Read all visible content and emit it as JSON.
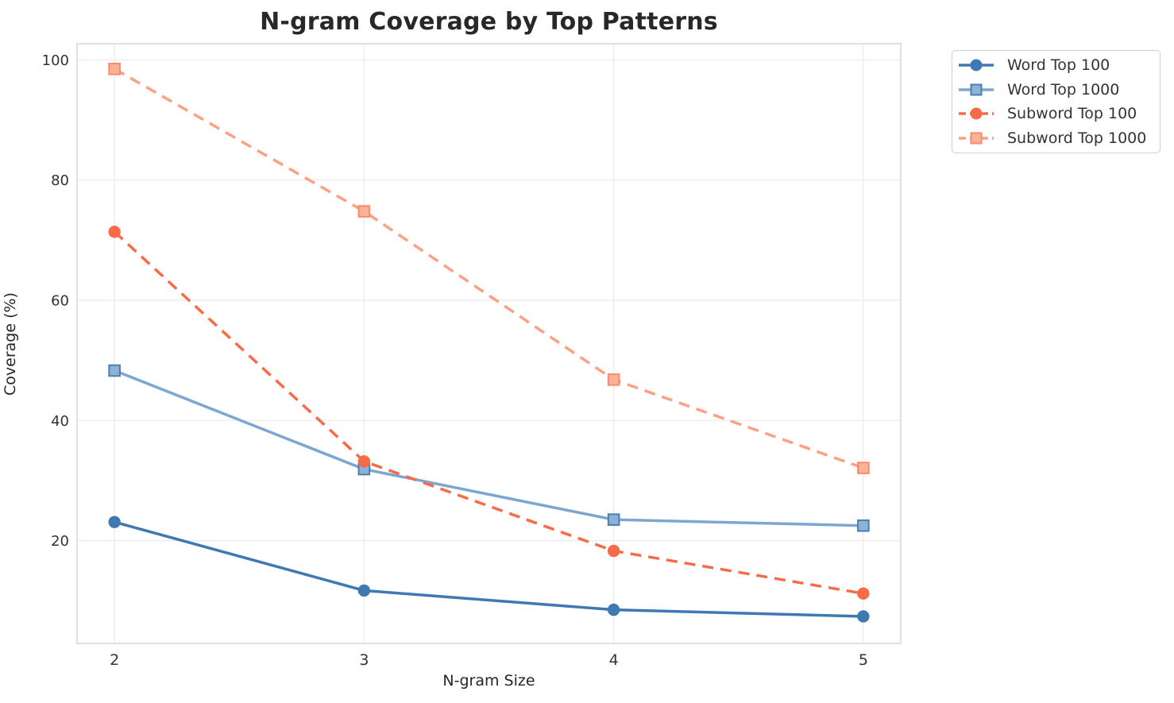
{
  "title": "N-gram Coverage by Top Patterns",
  "chart_data": {
    "type": "line",
    "title": "N-gram Coverage by Top Patterns",
    "xlabel": "N-gram Size",
    "ylabel": "Coverage (%)",
    "x": [
      2,
      3,
      4,
      5
    ],
    "xticks": [
      "2",
      "3",
      "4",
      "5"
    ],
    "yticks": [
      "20",
      "40",
      "60",
      "80",
      "100"
    ],
    "ytick_values": [
      20,
      40,
      60,
      80,
      100
    ],
    "xlim": [
      1.85,
      5.15
    ],
    "ylim": [
      2.9,
      102.7
    ],
    "grid": true,
    "legend_position": "outside-upper-right",
    "series": [
      {
        "name": "Word Top 100",
        "values": [
          23.1,
          11.7,
          8.5,
          7.4
        ],
        "color": "#3e79b1",
        "line_style": "solid",
        "marker": "circle",
        "marker_fill": "#3e79b1",
        "marker_edge": "#3e79b1"
      },
      {
        "name": "Word Top 1000",
        "values": [
          48.3,
          31.9,
          23.5,
          22.5
        ],
        "color": "#7ca7d0",
        "line_style": "solid",
        "marker": "square",
        "marker_fill": "#8db2d8",
        "marker_edge": "#4a7fae"
      },
      {
        "name": "Subword Top 100",
        "values": [
          71.4,
          33.2,
          18.3,
          11.2
        ],
        "color": "#f96a47",
        "line_style": "dashed",
        "marker": "circle",
        "marker_fill": "#f96a47",
        "marker_edge": "#f96a47"
      },
      {
        "name": "Subword Top 1000",
        "values": [
          98.5,
          74.8,
          46.8,
          32.1
        ],
        "color": "#fca184",
        "line_style": "dashed",
        "marker": "square",
        "marker_fill": "#fcb298",
        "marker_edge": "#fb8a66"
      }
    ],
    "style": {
      "grid_color": "#ebebeb",
      "spine_color": "#d6d6d6",
      "tick_label_color": "#333333",
      "title_color": "#282828",
      "background": "#ffffff"
    }
  }
}
